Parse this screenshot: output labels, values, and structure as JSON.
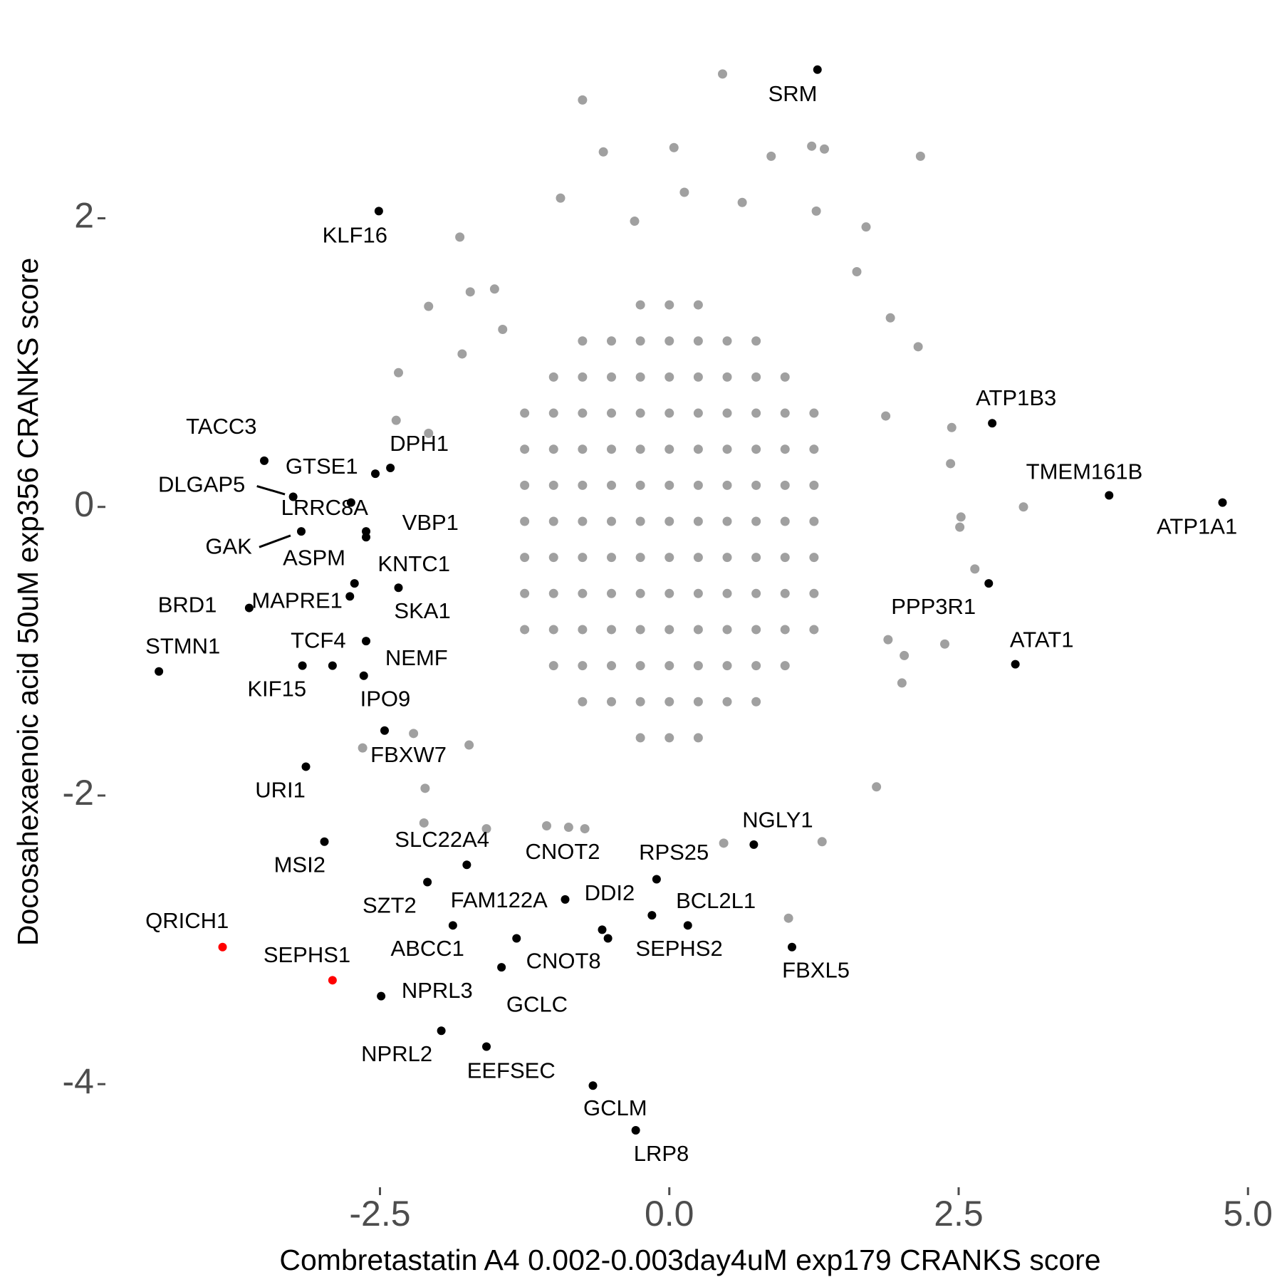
{
  "chart_data": {
    "type": "scatter",
    "xlabel": "Combretastatin A4 0.002-0.003day4uM exp179 CRANKS score",
    "ylabel": "Docosahexaenoic acid 50uM exp356 CRANKS score",
    "xlim": [
      -4.86,
      5.22
    ],
    "ylim": [
      -4.69,
      3.34
    ],
    "xticks": [
      -2.5,
      {
        "value": 0,
        "label": "0.0"
      },
      2.5,
      {
        "value": 5,
        "label": "5.0"
      }
    ],
    "yticks": [
      -4,
      -2,
      0,
      2
    ],
    "grid": false,
    "series": [
      {
        "color": "#a0a0a0",
        "x": [
          0.46,
          -0.75,
          -0.57,
          0.04,
          0.88,
          1.23,
          1.34,
          2.17,
          -1.81,
          -2.08,
          -2.34,
          2.15,
          2.44,
          2.43,
          3.06,
          2.52,
          2.51,
          2.64,
          2.38,
          2.03,
          2.01,
          1.79,
          1.32,
          1.03,
          0.47,
          -2.11,
          -2.12,
          -2.65,
          -2.21,
          -1.73,
          -1.58,
          -1.06,
          -0.87,
          -0.73,
          -2.36,
          -2.08,
          1.89,
          1.87,
          1.7,
          1.27,
          -0.3,
          0.13,
          0.63,
          -0.94,
          -1.51,
          -1.72,
          1.91,
          1.62,
          -1.44,
          -1.79,
          -0.25,
          0,
          0.25,
          -0.75,
          -0.5,
          -0.25,
          0,
          0.25,
          0.5,
          0.75,
          -1,
          -0.75,
          -0.5,
          -0.25,
          0,
          0.25,
          0.5,
          0.75,
          1,
          -1.25,
          -1,
          -0.75,
          -0.5,
          -0.25,
          0,
          0.25,
          0.5,
          0.75,
          1,
          1.25,
          -1.25,
          -1,
          -0.75,
          -0.5,
          -0.25,
          0,
          0.25,
          0.5,
          0.75,
          1,
          1.25,
          -1.25,
          -1,
          -0.75,
          -0.5,
          -0.25,
          0,
          0.25,
          0.5,
          0.75,
          1,
          1.25,
          -1.25,
          -1,
          -0.75,
          -0.5,
          -0.25,
          0,
          0.25,
          0.5,
          0.75,
          1,
          1.25,
          -1.25,
          -1,
          -0.75,
          -0.5,
          -0.25,
          0,
          0.25,
          0.5,
          0.75,
          1,
          1.25,
          -1.25,
          -1,
          -0.75,
          -0.5,
          -0.25,
          0,
          0.25,
          0.5,
          0.75,
          1,
          1.25,
          -1.25,
          -1,
          -0.75,
          -0.5,
          -0.25,
          0,
          0.25,
          0.5,
          0.75,
          1,
          1.25,
          -1,
          -0.75,
          -0.5,
          -0.25,
          0,
          0.25,
          0.5,
          0.75,
          1,
          -0.75,
          -0.5,
          -0.25,
          0,
          0.25,
          0.5,
          0.75,
          -0.25,
          0,
          0.25
        ],
        "y": [
          3.0,
          2.82,
          2.46,
          2.49,
          2.43,
          2.5,
          2.48,
          2.43,
          1.87,
          1.39,
          0.93,
          1.11,
          0.55,
          0.3,
          0.0,
          -0.07,
          -0.14,
          -0.43,
          -0.95,
          -1.03,
          -1.22,
          -1.94,
          -2.32,
          -2.85,
          -2.33,
          -1.95,
          -2.19,
          -1.67,
          -1.57,
          -1.65,
          -2.23,
          -2.21,
          -2.22,
          -2.23,
          0.6,
          0.51,
          -0.92,
          0.63,
          1.94,
          2.05,
          1.98,
          2.18,
          2.11,
          2.14,
          1.51,
          1.49,
          1.31,
          1.63,
          1.23,
          1.06,
          1.4,
          1.4,
          1.4,
          1.15,
          1.15,
          1.15,
          1.15,
          1.15,
          1.15,
          1.15,
          0.9,
          0.9,
          0.9,
          0.9,
          0.9,
          0.9,
          0.9,
          0.9,
          0.9,
          0.65,
          0.65,
          0.65,
          0.65,
          0.65,
          0.65,
          0.65,
          0.65,
          0.65,
          0.65,
          0.65,
          0.4,
          0.4,
          0.4,
          0.4,
          0.4,
          0.4,
          0.4,
          0.4,
          0.4,
          0.4,
          0.4,
          0.15,
          0.15,
          0.15,
          0.15,
          0.15,
          0.15,
          0.15,
          0.15,
          0.15,
          0.15,
          0.15,
          -0.1,
          -0.1,
          -0.1,
          -0.1,
          -0.1,
          -0.1,
          -0.1,
          -0.1,
          -0.1,
          -0.1,
          -0.1,
          -0.35,
          -0.35,
          -0.35,
          -0.35,
          -0.35,
          -0.35,
          -0.35,
          -0.35,
          -0.35,
          -0.35,
          -0.35,
          -0.6,
          -0.6,
          -0.6,
          -0.6,
          -0.6,
          -0.6,
          -0.6,
          -0.6,
          -0.6,
          -0.6,
          -0.6,
          -0.85,
          -0.85,
          -0.85,
          -0.85,
          -0.85,
          -0.85,
          -0.85,
          -0.85,
          -0.85,
          -0.85,
          -0.85,
          -1.1,
          -1.1,
          -1.1,
          -1.1,
          -1.1,
          -1.1,
          -1.1,
          -1.1,
          -1.1,
          -1.35,
          -1.35,
          -1.35,
          -1.35,
          -1.35,
          -1.35,
          -1.35,
          -1.6,
          -1.6,
          -1.6
        ]
      },
      {
        "color": "#000000",
        "labels": [
          "SRM",
          "KLF16",
          "ATP1B3",
          "TMEM161B",
          "ATP1A1",
          "TACC3",
          "DPH1",
          "GTSE1",
          "DLGAP5",
          "LRRC8A",
          "GAK",
          "VBP1",
          "KNTC1",
          "ASPM",
          "MAPRE1",
          "SKA1",
          "BRD1",
          "TCF4",
          "KIF15",
          "NEMF",
          "IPO9",
          "STMN1",
          "FBXW7",
          "URI1",
          "MSI2",
          "SLC22A4",
          "SZT2",
          "CNOT2",
          "RPS25",
          "NGLY1",
          "DDI2",
          "BCL2L1",
          "SEPHS2",
          "FAM122A",
          "ABCC1",
          "CNOT8",
          "GCLC",
          "FBXL5",
          "NPRL3",
          "NPRL2",
          "EEFSEC",
          "GCLM",
          "LRP8",
          "PPP3R1",
          "ATAT1"
        ],
        "x": [
          1.28,
          -2.51,
          2.79,
          3.8,
          4.78,
          -3.5,
          -2.41,
          -2.54,
          -3.25,
          -2.75,
          -3.18,
          -2.62,
          -2.62,
          -2.72,
          -2.76,
          -2.34,
          -3.63,
          -2.62,
          -3.17,
          -2.64,
          -2.91,
          -4.41,
          -2.46,
          -3.14,
          -2.98,
          -1.75,
          -2.09,
          -0.9,
          -0.11,
          0.73,
          -0.58,
          0.16,
          -0.15,
          -1.87,
          -1.32,
          -0.53,
          -1.45,
          1.06,
          -2.49,
          -1.97,
          -1.58,
          -0.66,
          -0.29,
          2.76,
          2.99
        ],
        "y": [
          3.03,
          2.05,
          0.58,
          0.08,
          0.03,
          0.32,
          0.27,
          0.23,
          0.07,
          0.03,
          -0.17,
          -0.17,
          -0.21,
          -0.53,
          -0.62,
          -0.56,
          -0.7,
          -0.93,
          -1.1,
          -1.17,
          -1.1,
          -1.14,
          -1.55,
          -1.8,
          -2.32,
          -2.48,
          -2.6,
          -2.72,
          -2.58,
          -2.34,
          -2.93,
          -2.9,
          -2.83,
          -2.9,
          -2.99,
          -2.99,
          -3.19,
          -3.05,
          -3.39,
          -3.63,
          -3.74,
          -4.01,
          -4.32,
          -0.53,
          -1.09
        ]
      },
      {
        "color": "#ff0000",
        "labels": [
          "QRICH1",
          "SEPHS1"
        ],
        "x": [
          -3.86,
          -2.91
        ],
        "y": [
          -3.05,
          -3.28
        ]
      }
    ]
  }
}
